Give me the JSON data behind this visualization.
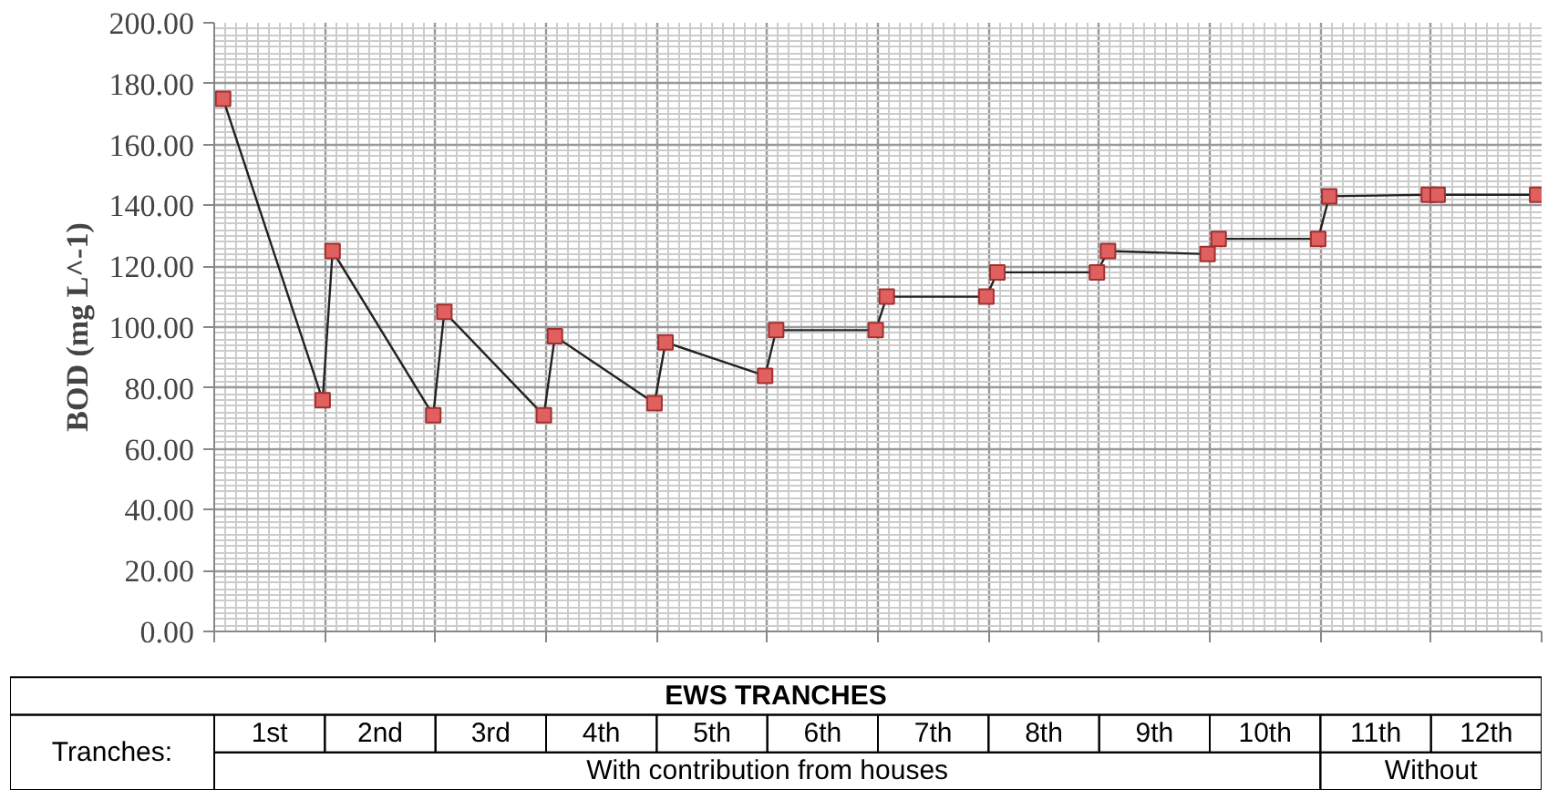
{
  "chart_data": {
    "type": "line",
    "ylabel": "BOD (mg L^-1)",
    "xlabel": "EWS TRANCHES",
    "x": [
      0.08,
      0.98,
      1.07,
      1.98,
      2.08,
      2.98,
      3.08,
      3.98,
      4.08,
      4.98,
      5.08,
      5.98,
      6.08,
      6.98,
      7.08,
      7.98,
      8.08,
      8.98,
      9.08,
      9.98,
      10.08,
      10.98,
      11.06,
      11.96
    ],
    "series": [
      {
        "color": "#e06060",
        "values": [
          175,
          76,
          125,
          71,
          105,
          71,
          97,
          75,
          95,
          84,
          99,
          99,
          110,
          110,
          118,
          118,
          125,
          124,
          129,
          129,
          143,
          143.5,
          143.5,
          143.5
        ]
      }
    ],
    "marker": "square",
    "line_style": "solid",
    "grid": true,
    "xlim": [
      0,
      12
    ],
    "xticks": [
      {
        "value": 0.5,
        "label": "1st"
      },
      {
        "value": 1.5,
        "label": "2nd"
      },
      {
        "value": 2.5,
        "label": "3rd"
      },
      {
        "value": 3.5,
        "label": "4th"
      },
      {
        "value": 4.5,
        "label": "5th"
      },
      {
        "value": 5.5,
        "label": "6th"
      },
      {
        "value": 6.5,
        "label": "7th"
      },
      {
        "value": 7.5,
        "label": "8th"
      },
      {
        "value": 8.5,
        "label": "9th"
      },
      {
        "value": 9.5,
        "label": "10th"
      },
      {
        "value": 10.5,
        "label": "11th"
      },
      {
        "value": 11.5,
        "label": "12th"
      }
    ],
    "ylim": [
      0,
      200
    ],
    "yticks": [
      {
        "value": 0,
        "label": "0.00"
      },
      {
        "value": 20,
        "label": "20.00"
      },
      {
        "value": 40,
        "label": "40.00"
      },
      {
        "value": 60,
        "label": "60.00"
      },
      {
        "value": 80,
        "label": "80.00"
      },
      {
        "value": 100,
        "label": "100.00"
      },
      {
        "value": 120,
        "label": "120.00"
      },
      {
        "value": 140,
        "label": "140.00"
      },
      {
        "value": 160,
        "label": "160.00"
      },
      {
        "value": 180,
        "label": "180.00"
      },
      {
        "value": 200,
        "label": "200.00"
      }
    ],
    "annotations": [
      "Tranches:",
      "With contribution from houses",
      "Without"
    ]
  }
}
